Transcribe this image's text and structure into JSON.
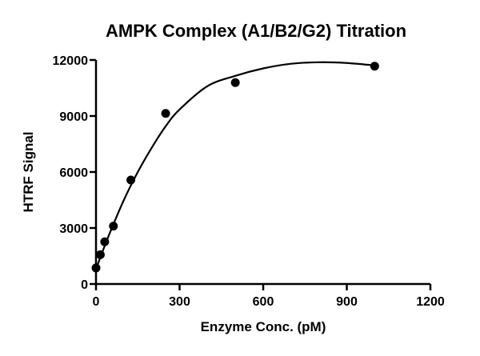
{
  "chart_data": {
    "type": "scatter",
    "title": "AMPK Complex (A1/B2/G2) Titration",
    "xlabel": "Enzyme Conc. (pM)",
    "ylabel": "HTRF Signal",
    "xlim": [
      0,
      1200
    ],
    "ylim": [
      0,
      12000
    ],
    "xticks": [
      "0",
      "300",
      "600",
      "900",
      "1200"
    ],
    "yticks": [
      "0",
      "3000",
      "6000",
      "9000",
      "12000"
    ],
    "grid": false,
    "legend": "none",
    "points": {
      "x": [
        0,
        15.6,
        31.25,
        62.5,
        125,
        250,
        500,
        1000
      ],
      "y": [
        860,
        1570,
        2260,
        3100,
        5570,
        9140,
        10790,
        11670
      ]
    },
    "fit_curve": {
      "x": [
        0,
        25,
        50,
        100,
        150,
        200,
        250,
        300,
        400,
        500,
        600,
        700,
        800,
        900,
        1000
      ],
      "y": [
        800,
        1800,
        2750,
        4500,
        6000,
        7300,
        8450,
        9350,
        10600,
        11150,
        11550,
        11800,
        11880,
        11840,
        11710
      ]
    },
    "colors": {
      "marker": "#000000",
      "line": "#000000"
    }
  }
}
